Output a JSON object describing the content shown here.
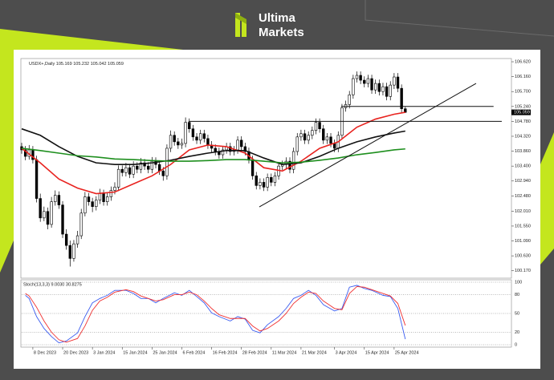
{
  "brand": [
    "Ultima",
    "Markets"
  ],
  "chart_data": {
    "type": "candlestick",
    "symbol": "USDX+,Daily",
    "indicator_title": "Stoch(13,3,3) 9.0030 30.8275",
    "up_color": "#ffffff",
    "down_color": "#000000",
    "xlim": [
      0,
      131.5
    ],
    "ylim": [
      99.99,
      106.67
    ],
    "yticks": [
      {
        "value": 106.62,
        "label": "106.620"
      },
      {
        "value": 106.16,
        "label": "106.160"
      },
      {
        "value": 105.7,
        "label": "105.700"
      },
      {
        "value": 105.24,
        "label": "105.240"
      },
      {
        "value": 104.78,
        "label": "104.780"
      },
      {
        "value": 104.32,
        "label": "104.320"
      },
      {
        "value": 103.86,
        "label": "103.860"
      },
      {
        "value": 103.4,
        "label": "103.400"
      },
      {
        "value": 102.94,
        "label": "102.940"
      },
      {
        "value": 102.48,
        "label": "102.480"
      },
      {
        "value": 102.01,
        "label": "102.010"
      },
      {
        "value": 101.55,
        "label": "101.550"
      },
      {
        "value": 101.09,
        "label": "101.090"
      },
      {
        "value": 100.63,
        "label": "100.630"
      },
      {
        "value": 100.17,
        "label": "100.170"
      }
    ],
    "xticks": [
      {
        "value": 3,
        "label": "8 Dec 2023"
      },
      {
        "value": 11,
        "label": "20 Dec 2023"
      },
      {
        "value": 19,
        "label": "3 Jan 2024"
      },
      {
        "value": 27,
        "label": "15 Jan 2024"
      },
      {
        "value": 35,
        "label": "25 Jan 2024"
      },
      {
        "value": 43,
        "label": "6 Feb 2024"
      },
      {
        "value": 51,
        "label": "16 Feb 2024"
      },
      {
        "value": 59,
        "label": "28 Feb 2024"
      },
      {
        "value": 67,
        "label": "11 Mar 2024"
      },
      {
        "value": 75,
        "label": "21 Mar 2024"
      },
      {
        "value": 84,
        "label": "3 Apr 2024"
      },
      {
        "value": 92,
        "label": "15 Apr 2024"
      },
      {
        "value": 100,
        "label": "25 Apr 2024"
      }
    ],
    "candles": [
      [
        104.0,
        104.12,
        103.78,
        103.9
      ],
      [
        103.9,
        104.02,
        103.58,
        103.7
      ],
      [
        103.7,
        104.05,
        103.6,
        103.9
      ],
      [
        103.9,
        104.02,
        103.48,
        103.6
      ],
      [
        103.6,
        103.72,
        102.28,
        102.4
      ],
      [
        102.4,
        102.55,
        101.68,
        101.8
      ],
      [
        101.8,
        102.15,
        101.7,
        102.0
      ],
      [
        102.0,
        102.12,
        101.45,
        101.6
      ],
      [
        101.6,
        102.45,
        101.5,
        102.3
      ],
      [
        102.3,
        102.65,
        102.18,
        102.5
      ],
      [
        102.5,
        102.62,
        102.08,
        102.2
      ],
      [
        102.2,
        102.32,
        101.18,
        101.3
      ],
      [
        101.3,
        101.45,
        100.82,
        100.95
      ],
      [
        100.95,
        101.1,
        100.3,
        100.55
      ],
      [
        100.55,
        101.12,
        100.45,
        101.0
      ],
      [
        101.0,
        101.4,
        100.88,
        101.25
      ],
      [
        101.25,
        102.08,
        101.15,
        101.95
      ],
      [
        101.95,
        102.6,
        101.85,
        102.45
      ],
      [
        102.45,
        102.57,
        102.18,
        102.3
      ],
      [
        102.3,
        102.42,
        101.98,
        102.15
      ],
      [
        102.15,
        102.47,
        102.03,
        102.35
      ],
      [
        102.35,
        102.7,
        102.23,
        102.55
      ],
      [
        102.55,
        102.67,
        102.18,
        102.3
      ],
      [
        102.3,
        102.57,
        102.18,
        102.45
      ],
      [
        102.45,
        102.77,
        102.33,
        102.65
      ],
      [
        102.65,
        102.9,
        102.53,
        102.75
      ],
      [
        102.75,
        103.42,
        102.63,
        103.3
      ],
      [
        103.3,
        103.42,
        103.08,
        103.2
      ],
      [
        103.2,
        103.5,
        103.08,
        103.35
      ],
      [
        103.35,
        103.47,
        103.03,
        103.15
      ],
      [
        103.15,
        103.55,
        103.03,
        103.4
      ],
      [
        103.4,
        103.52,
        103.18,
        103.3
      ],
      [
        103.3,
        103.65,
        103.18,
        103.5
      ],
      [
        103.5,
        103.62,
        103.28,
        103.4
      ],
      [
        103.4,
        103.52,
        103.18,
        103.3
      ],
      [
        103.3,
        103.68,
        103.18,
        103.55
      ],
      [
        103.55,
        103.67,
        103.33,
        103.45
      ],
      [
        103.45,
        103.57,
        103.13,
        103.25
      ],
      [
        103.25,
        103.37,
        102.95,
        103.1
      ],
      [
        103.1,
        104.07,
        102.98,
        103.95
      ],
      [
        103.95,
        104.5,
        103.83,
        104.35
      ],
      [
        104.35,
        104.47,
        104.03,
        104.15
      ],
      [
        104.15,
        104.27,
        103.93,
        104.05
      ],
      [
        104.05,
        104.25,
        103.93,
        104.1
      ],
      [
        104.1,
        104.9,
        103.98,
        104.75
      ],
      [
        104.75,
        104.87,
        104.43,
        104.55
      ],
      [
        104.55,
        104.67,
        104.18,
        104.3
      ],
      [
        104.3,
        104.42,
        104.08,
        104.2
      ],
      [
        104.2,
        104.52,
        104.08,
        104.4
      ],
      [
        104.4,
        104.52,
        104.13,
        104.25
      ],
      [
        104.25,
        104.37,
        103.93,
        104.05
      ],
      [
        104.05,
        104.17,
        103.83,
        103.95
      ],
      [
        103.95,
        104.07,
        103.73,
        103.85
      ],
      [
        103.85,
        103.97,
        103.63,
        103.75
      ],
      [
        103.75,
        104.02,
        103.63,
        103.9
      ],
      [
        103.9,
        104.12,
        103.78,
        104.0
      ],
      [
        104.0,
        104.12,
        103.73,
        103.85
      ],
      [
        103.85,
        104.02,
        103.73,
        103.9
      ],
      [
        103.9,
        104.32,
        103.78,
        104.2
      ],
      [
        104.2,
        104.32,
        103.88,
        104.0
      ],
      [
        104.0,
        104.12,
        103.73,
        103.85
      ],
      [
        103.85,
        103.97,
        103.48,
        103.6
      ],
      [
        103.6,
        103.72,
        102.98,
        103.1
      ],
      [
        103.1,
        103.22,
        102.68,
        102.8
      ],
      [
        102.8,
        103.02,
        102.68,
        102.9
      ],
      [
        102.9,
        103.02,
        102.63,
        102.75
      ],
      [
        102.75,
        103.17,
        102.63,
        103.05
      ],
      [
        103.05,
        103.17,
        102.78,
        102.9
      ],
      [
        102.9,
        103.22,
        102.78,
        103.1
      ],
      [
        103.1,
        103.52,
        102.98,
        103.4
      ],
      [
        103.4,
        103.57,
        103.28,
        103.45
      ],
      [
        103.45,
        103.67,
        103.33,
        103.55
      ],
      [
        103.55,
        103.67,
        103.18,
        103.3
      ],
      [
        103.3,
        103.97,
        103.18,
        103.85
      ],
      [
        103.85,
        104.42,
        103.73,
        104.3
      ],
      [
        104.3,
        104.52,
        104.18,
        104.4
      ],
      [
        104.4,
        104.52,
        104.08,
        104.2
      ],
      [
        104.2,
        104.47,
        104.08,
        104.35
      ],
      [
        104.35,
        104.62,
        104.23,
        104.5
      ],
      [
        104.5,
        104.87,
        104.38,
        104.75
      ],
      [
        104.75,
        104.87,
        104.43,
        104.55
      ],
      [
        104.55,
        104.67,
        104.08,
        104.2
      ],
      [
        104.2,
        104.42,
        104.08,
        104.3
      ],
      [
        104.3,
        104.42,
        103.98,
        104.1
      ],
      [
        104.1,
        104.22,
        103.83,
        103.95
      ],
      [
        103.95,
        104.47,
        103.83,
        104.35
      ],
      [
        104.35,
        105.32,
        104.23,
        105.2
      ],
      [
        105.2,
        105.42,
        105.08,
        105.3
      ],
      [
        105.3,
        105.72,
        105.18,
        105.6
      ],
      [
        105.6,
        106.22,
        105.48,
        106.1
      ],
      [
        106.1,
        106.32,
        105.98,
        106.2
      ],
      [
        106.2,
        106.32,
        105.93,
        106.05
      ],
      [
        106.05,
        106.17,
        105.83,
        105.95
      ],
      [
        105.95,
        106.22,
        105.83,
        106.1
      ],
      [
        106.1,
        106.22,
        105.63,
        105.75
      ],
      [
        105.75,
        106.07,
        105.63,
        105.95
      ],
      [
        105.95,
        106.07,
        105.58,
        105.7
      ],
      [
        105.7,
        105.97,
        105.58,
        105.85
      ],
      [
        105.85,
        105.97,
        105.43,
        105.55
      ],
      [
        105.55,
        106.02,
        105.43,
        105.9
      ],
      [
        105.9,
        106.27,
        105.78,
        106.15
      ],
      [
        106.15,
        106.27,
        105.68,
        105.8
      ],
      [
        105.8,
        105.92,
        105.05,
        105.17
      ],
      [
        105.169,
        105.232,
        105.042,
        105.059
      ]
    ],
    "series": [
      {
        "color": "#e8231f",
        "x": [
          0,
          5,
          10,
          15,
          20,
          25,
          30,
          35,
          40,
          45,
          50,
          55,
          60,
          65,
          70,
          75,
          80,
          85,
          90,
          95,
          100,
          103
        ],
        "values": [
          103.95,
          103.5,
          103.0,
          102.72,
          102.55,
          102.6,
          102.85,
          103.1,
          103.45,
          103.9,
          104.05,
          104.0,
          103.8,
          103.35,
          103.25,
          103.55,
          103.95,
          104.15,
          104.6,
          104.85,
          105.0,
          105.06
        ]
      },
      {
        "color": "#111111",
        "x": [
          0,
          5,
          10,
          15,
          20,
          25,
          30,
          35,
          40,
          45,
          50,
          55,
          60,
          65,
          70,
          75,
          80,
          85,
          90,
          95,
          100,
          103
        ],
        "values": [
          104.55,
          104.35,
          104.0,
          103.7,
          103.5,
          103.45,
          103.45,
          103.5,
          103.58,
          103.7,
          103.8,
          103.88,
          103.88,
          103.65,
          103.45,
          103.5,
          103.7,
          103.95,
          104.15,
          104.3,
          104.42,
          104.48
        ]
      },
      {
        "color": "#1e8f1e",
        "x": [
          0,
          5,
          10,
          15,
          20,
          25,
          30,
          35,
          40,
          45,
          50,
          55,
          60,
          65,
          70,
          75,
          80,
          85,
          90,
          95,
          100,
          103
        ],
        "values": [
          103.95,
          103.88,
          103.8,
          103.72,
          103.68,
          103.62,
          103.6,
          103.57,
          103.55,
          103.55,
          103.57,
          103.6,
          103.6,
          103.55,
          103.5,
          103.52,
          103.58,
          103.65,
          103.75,
          103.82,
          103.9,
          103.93
        ]
      }
    ],
    "lines": [
      {
        "x": [
          44.8,
          128.9
        ],
        "y": [
          104.78,
          104.78
        ]
      },
      {
        "x": [
          85.8,
          126.7
        ],
        "y": [
          105.24,
          105.24
        ]
      },
      {
        "x": [
          63.8,
          122
        ],
        "y": [
          102.14,
          105.95
        ]
      }
    ],
    "stoch": {
      "ylim": [
        0,
        100
      ],
      "yticks": [
        0,
        20,
        50,
        80,
        100
      ],
      "x": [
        1,
        2,
        4,
        6,
        8,
        10,
        12,
        15,
        17,
        19,
        21,
        23,
        25,
        28,
        30,
        32,
        34,
        36,
        38,
        41,
        43,
        45,
        47,
        49,
        51,
        53,
        56,
        58,
        60,
        62,
        64,
        66,
        69,
        71,
        73,
        75,
        77,
        79,
        81,
        84,
        86,
        88,
        90,
        92,
        94,
        97,
        99,
        101,
        103
      ],
      "series": [
        {
          "color": "#3a5cf0",
          "values": [
            79,
            74,
            45,
            26,
            13,
            3,
            6,
            19,
            45,
            67,
            74,
            79,
            87,
            87,
            82,
            74,
            74,
            67,
            74,
            83,
            79,
            87,
            77,
            67,
            51,
            45,
            38,
            45,
            41,
            23,
            19,
            32,
            45,
            58,
            74,
            79,
            87,
            79,
            64,
            54,
            58,
            92,
            95,
            90,
            87,
            79,
            77,
            58,
            9.003
          ]
        },
        {
          "color": "#f03030",
          "values": [
            82,
            78,
            60,
            38,
            20,
            8,
            4,
            10,
            30,
            55,
            70,
            76,
            84,
            88,
            85,
            78,
            74,
            70,
            72,
            80,
            80,
            84,
            80,
            70,
            58,
            48,
            42,
            42,
            42,
            30,
            22,
            26,
            38,
            50,
            66,
            76,
            84,
            82,
            70,
            58,
            56,
            82,
            93,
            92,
            88,
            82,
            78,
            66,
            30.8275
          ]
        }
      ]
    }
  }
}
